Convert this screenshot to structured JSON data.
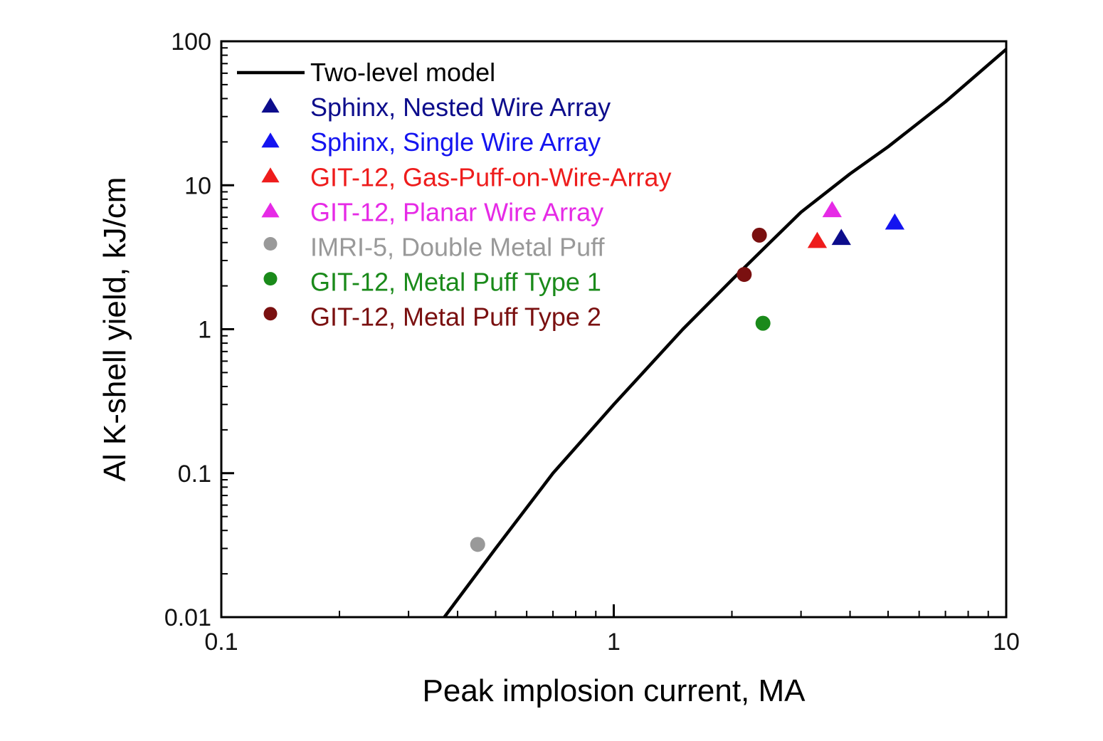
{
  "chart_data": {
    "type": "scatter",
    "title": "",
    "xlabel": "Peak implosion current, MA",
    "ylabel": "Al K-shell yield, kJ/cm",
    "xscale": "log",
    "yscale": "log",
    "xlim": [
      0.1,
      10
    ],
    "ylim": [
      0.01,
      100
    ],
    "x_ticks": [
      {
        "value": 0.1,
        "label": "0.1"
      },
      {
        "value": 1,
        "label": "1"
      },
      {
        "value": 10,
        "label": "10"
      }
    ],
    "y_ticks": [
      {
        "value": 0.01,
        "label": "0.01"
      },
      {
        "value": 0.1,
        "label": "0.1"
      },
      {
        "value": 1,
        "label": "1"
      },
      {
        "value": 10,
        "label": "10"
      },
      {
        "value": 100,
        "label": "100"
      }
    ],
    "grid": false,
    "legend_position": "top-left",
    "series": [
      {
        "name": "Two-level model",
        "kind": "line",
        "color": "#000000",
        "points": [
          [
            0.37,
            0.01
          ],
          [
            0.5,
            0.03
          ],
          [
            0.7,
            0.1
          ],
          [
            1.0,
            0.3
          ],
          [
            1.5,
            1.0
          ],
          [
            2.0,
            2.2
          ],
          [
            2.5,
            4.0
          ],
          [
            3.0,
            6.5
          ],
          [
            4.0,
            12.0
          ],
          [
            5.0,
            18.5
          ],
          [
            7.0,
            38.0
          ],
          [
            10.0,
            88.0
          ]
        ]
      },
      {
        "name": "Sphinx, Nested Wire Array",
        "kind": "triangle",
        "color": "#0d0d8c",
        "points": [
          [
            3.8,
            4.3
          ]
        ]
      },
      {
        "name": "Sphinx, Single Wire Array",
        "kind": "triangle",
        "color": "#1414f0",
        "points": [
          [
            5.2,
            5.5
          ]
        ]
      },
      {
        "name": "GIT-12, Gas-Puff-on-Wire-Array",
        "kind": "triangle",
        "color": "#ee1c1c",
        "points": [
          [
            3.3,
            4.1
          ]
        ]
      },
      {
        "name": "GIT-12, Planar Wire Array",
        "kind": "triangle",
        "color": "#e62ae6",
        "points": [
          [
            3.6,
            6.7
          ]
        ]
      },
      {
        "name": "IMRI-5, Double Metal Puff",
        "kind": "circle",
        "color": "#999999",
        "points": [
          [
            0.45,
            0.032
          ]
        ]
      },
      {
        "name": "GIT-12, Metal Puff Type 1",
        "kind": "circle",
        "color": "#1a8a1a",
        "points": [
          [
            2.4,
            1.1
          ]
        ]
      },
      {
        "name": "GIT-12, Metal Puff Type 2",
        "kind": "circle",
        "color": "#7a1010",
        "points": [
          [
            2.15,
            2.4
          ],
          [
            2.35,
            4.5
          ]
        ]
      }
    ]
  }
}
